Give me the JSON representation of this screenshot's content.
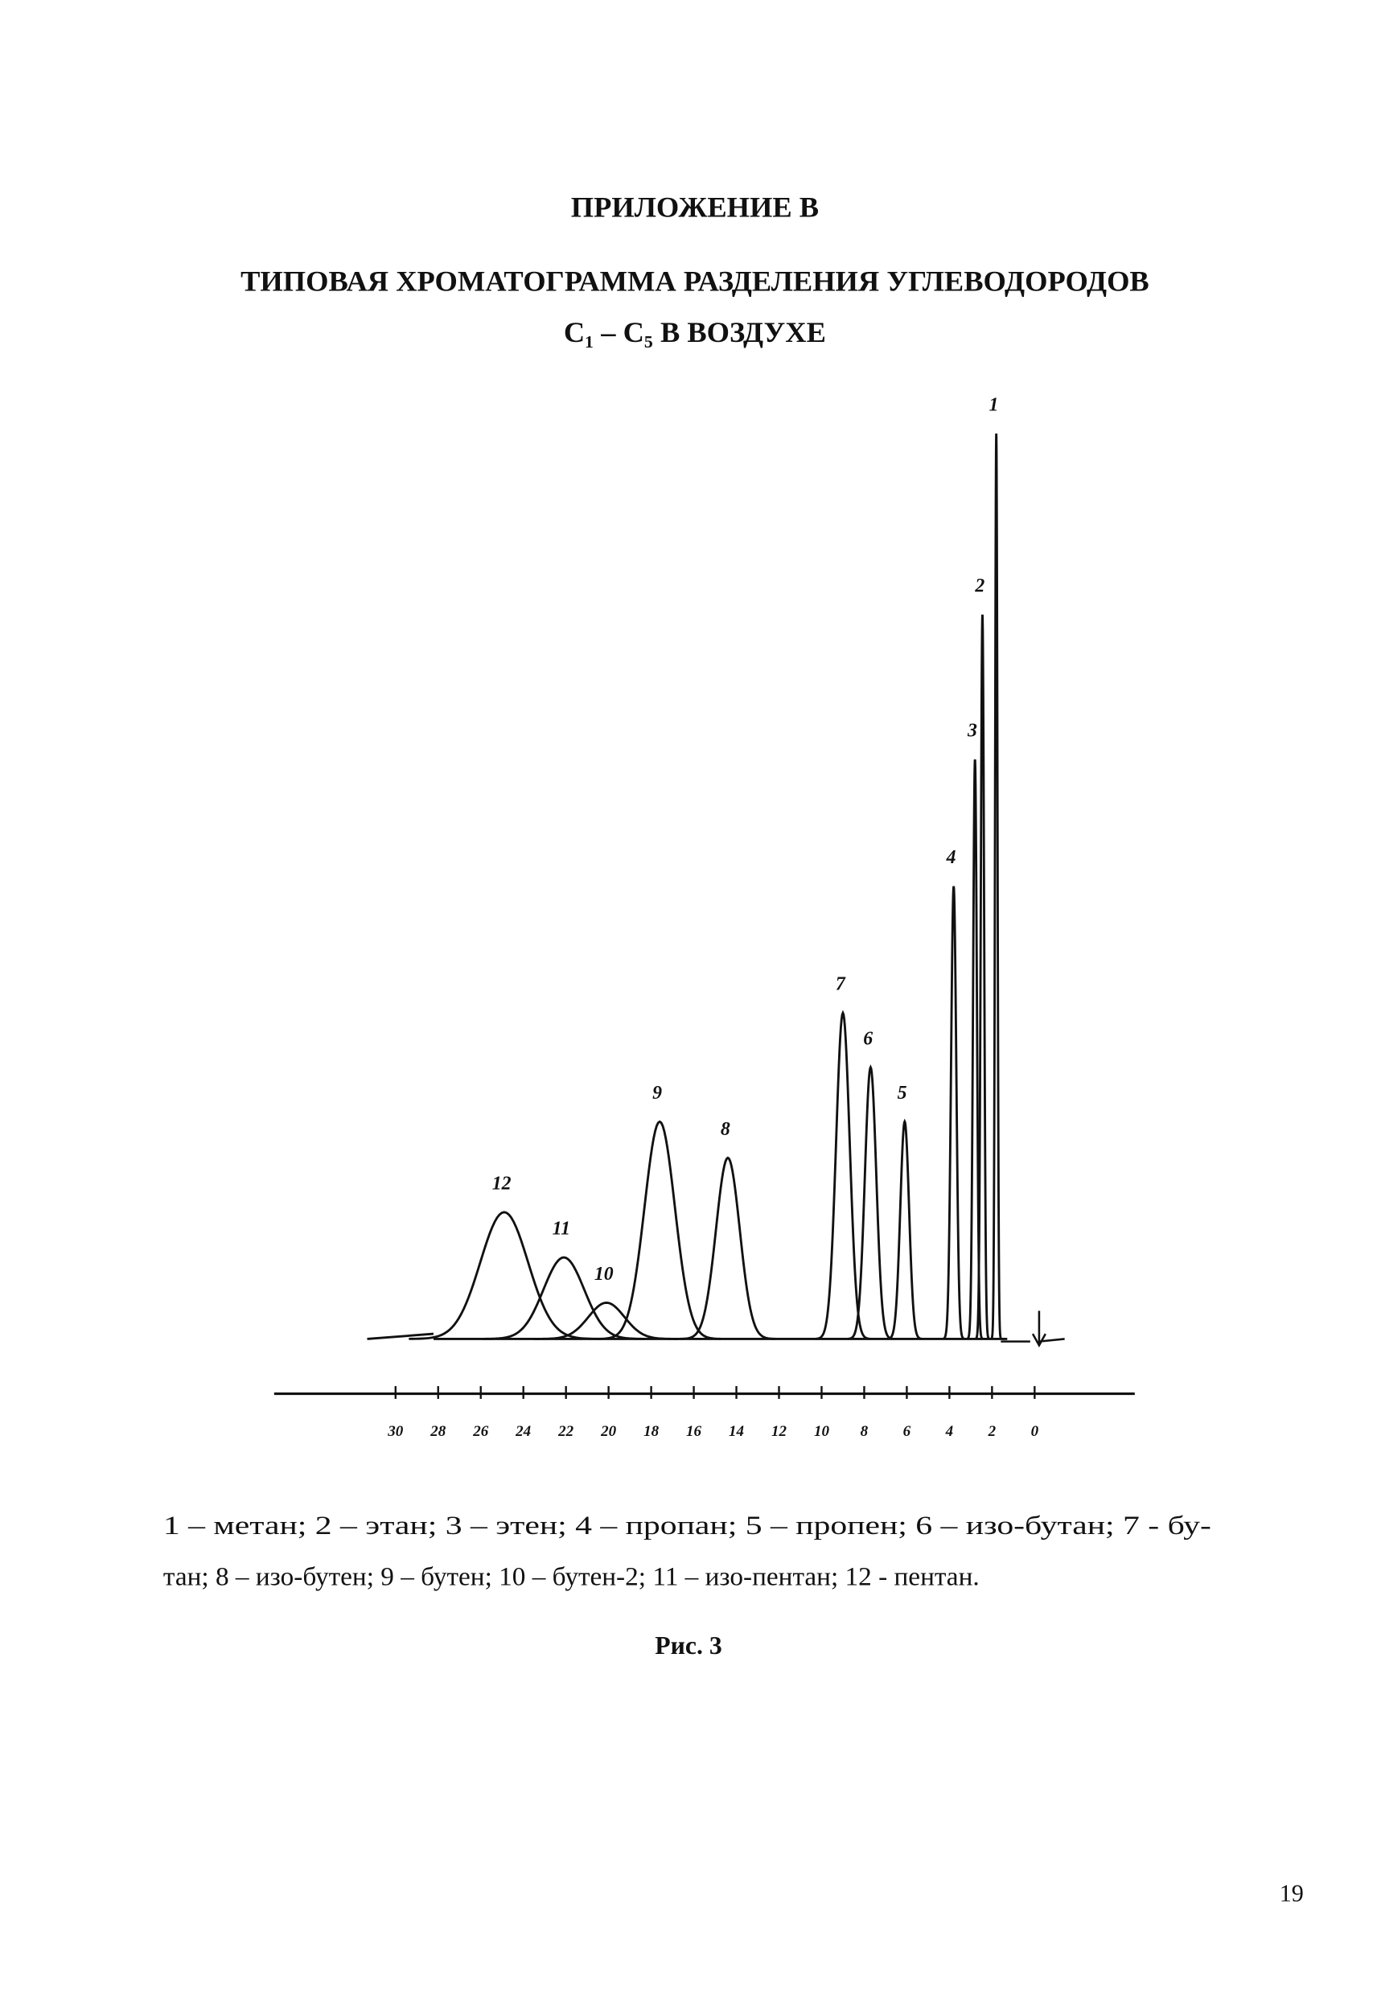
{
  "page": {
    "appendix": "ПРИЛОЖЕНИЕ В",
    "title_line1": "ТИПОВАЯ ХРОМАТОГРАММА РАЗДЕЛЕНИЯ УГЛЕВОДОРОДОВ",
    "title_line2": "C₁ – C₅ В ВОЗДУХЕ",
    "caption_line1": "1 – метан; 2 – этан; 3 – этен; 4 – пропан; 5 – пропен; 6 – изо-бутан; 7 - бу-",
    "caption_line2": "тан; 8 – изо-бутен; 9 – бутен; 10 – бутен-2; 11 – изо-пентан; 12 - пентан.",
    "figure_label": "Рис. 3",
    "page_number": "19"
  },
  "chart_data": {
    "type": "chromatogram",
    "labels": [
      "1",
      "2",
      "3",
      "4",
      "5",
      "6",
      "7",
      "8",
      "9",
      "10",
      "11",
      "12"
    ],
    "x": [
      1.8,
      2.45,
      2.8,
      3.8,
      6.1,
      7.7,
      9.0,
      14.4,
      17.6,
      20.1,
      22.1,
      24.9
    ],
    "values": [
      100,
      80,
      64,
      50,
      24,
      30,
      36,
      20,
      24,
      4,
      9,
      14
    ],
    "xlim": [
      35.7,
      -4.7
    ],
    "xticks": [
      30,
      28,
      26,
      24,
      22,
      20,
      18,
      16,
      14,
      12,
      10,
      8,
      6,
      4,
      2,
      0
    ],
    "ylim": [
      0,
      100
    ]
  }
}
